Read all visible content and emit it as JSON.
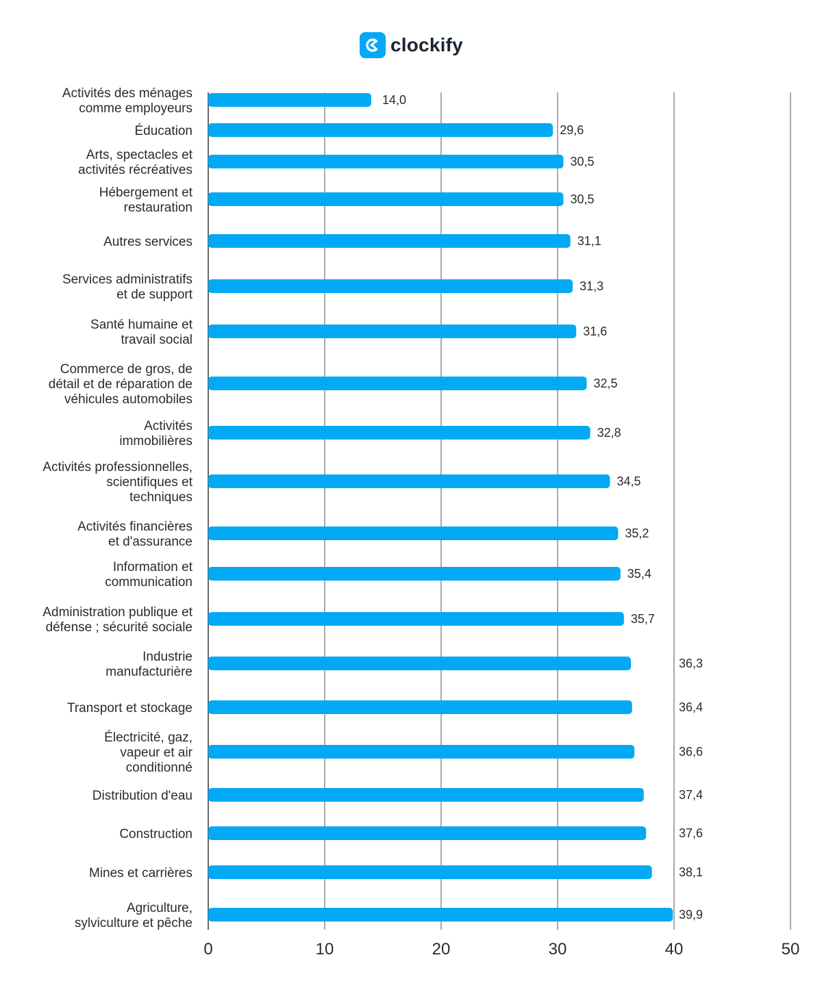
{
  "brand": {
    "name": "clockify",
    "accent": "#03a9f4",
    "icon": "clockify-logo-icon"
  },
  "chart_data": {
    "type": "bar",
    "orientation": "horizontal",
    "title": "",
    "xlabel": "",
    "ylabel": "",
    "xlim": [
      0,
      50
    ],
    "xticks": [
      0,
      10,
      20,
      30,
      40,
      50
    ],
    "grid": true,
    "bar_color": "#03a9f4",
    "categories": [
      [
        "Activités des ménages",
        "comme employeurs"
      ],
      [
        "Éducation"
      ],
      [
        "Arts, spectacles et",
        "activités récréatives"
      ],
      [
        "Hébergement et",
        "restauration"
      ],
      [
        "Autres services"
      ],
      [
        "Services administratifs",
        "et de support"
      ],
      [
        "Santé humaine et",
        "travail social"
      ],
      [
        "Commerce de gros, de",
        "détail et de réparation de",
        "véhicules automobiles"
      ],
      [
        "Activités",
        "immobilières"
      ],
      [
        "Activités professionnelles,",
        "scientifiques et",
        "techniques"
      ],
      [
        "Activités financières",
        "et d'assurance"
      ],
      [
        "Information et",
        "communication"
      ],
      [
        "Administration publique et",
        "défense ; sécurité sociale"
      ],
      [
        "Industrie",
        "manufacturière"
      ],
      [
        "Transport et stockage"
      ],
      [
        "Électricité, gaz,",
        "vapeur et air",
        "conditionné"
      ],
      [
        "Distribution d'eau"
      ],
      [
        "Construction"
      ],
      [
        "Mines et carrières"
      ],
      [
        "Agriculture,",
        "sylviculture et pêche"
      ]
    ],
    "values": [
      14.0,
      29.6,
      30.5,
      30.5,
      31.1,
      31.3,
      31.6,
      32.5,
      32.8,
      34.5,
      35.2,
      35.4,
      35.7,
      36.3,
      36.4,
      36.6,
      37.4,
      37.6,
      38.1,
      39.9
    ],
    "value_labels": [
      "14,0",
      "29,6",
      "30,5",
      "30,5",
      "31,1",
      "31,3",
      "31,6",
      "32,5",
      "32,8",
      "34,5",
      "35,2",
      "35,4",
      "35,7",
      "36,3",
      "36,4",
      "36,6",
      "37,4",
      "37,6",
      "38,1",
      "39,9"
    ]
  }
}
